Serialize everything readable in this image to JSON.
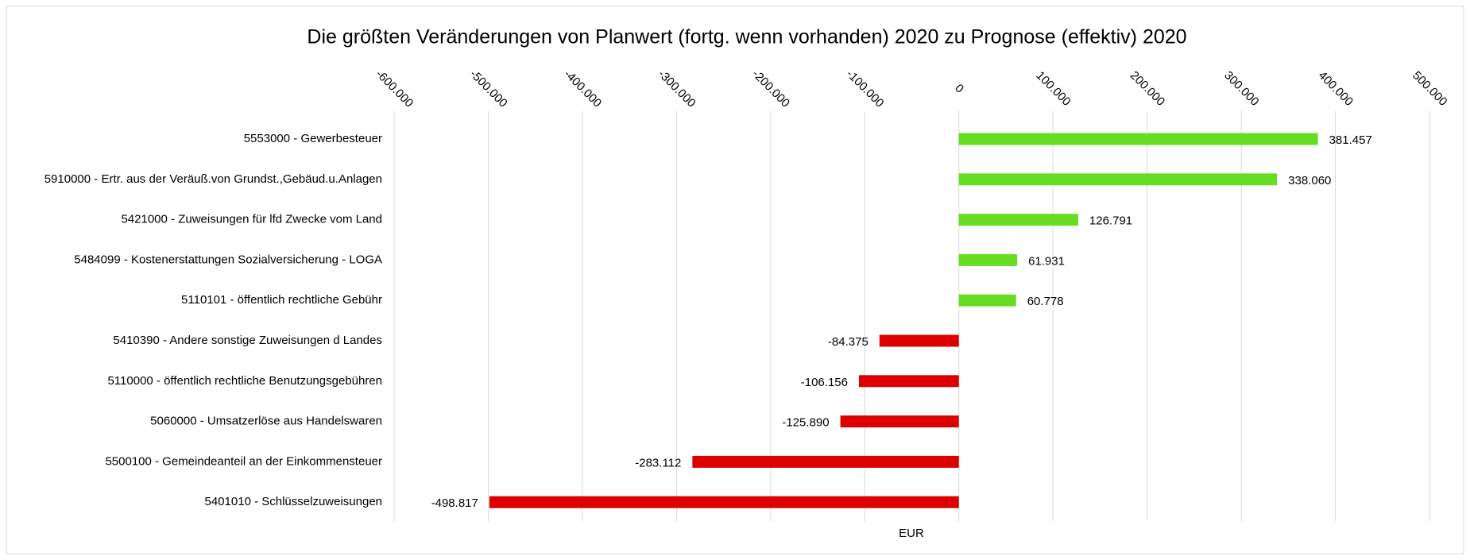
{
  "chart_data": {
    "type": "barh",
    "title": "Die größten Veränderungen von Planwert (fortg. wenn vorhanden) 2020 zu Prognose (effektiv) 2020",
    "x_label": "EUR",
    "categories": [
      "5553000 - Gewerbesteuer",
      "5910000 - Ertr. aus der Veräuß.von Grundst.,Gebäud.u.Anlagen",
      "5421000 - Zuweisungen für lfd Zwecke vom Land",
      "5484099 - Kostenerstattungen Sozialversicherung - LOGA",
      "5110101 - öffentlich rechtliche Gebühr",
      "5410390 - Andere sonstige Zuweisungen d Landes",
      "5110000 - öffentlich rechtliche Benutzungsgebühren",
      "5060000 - Umsatzerlöse aus Handelswaren",
      "5500100 - Gemeindeanteil an der Einkommensteuer",
      "5401010 - Schlüsselzuweisungen"
    ],
    "values": [
      381457,
      338060,
      126791,
      61931,
      60778,
      -84375,
      -106156,
      -125890,
      -283112,
      -498817
    ],
    "value_labels": [
      "381.457",
      "338.060",
      "126.791",
      "61.931",
      "60.778",
      "-84.375",
      "-106.156",
      "-125.890",
      "-283.112",
      "-498.817"
    ],
    "positive_color": "#66dd22",
    "negative_color": "#dd0000",
    "xlim": [
      -600000,
      500000
    ],
    "xticks": [
      {
        "value": -600000,
        "label": "-600.000"
      },
      {
        "value": -500000,
        "label": "-500.000"
      },
      {
        "value": -400000,
        "label": "-400.000"
      },
      {
        "value": -300000,
        "label": "-300.000"
      },
      {
        "value": -200000,
        "label": "-200.000"
      },
      {
        "value": -100000,
        "label": "-100.000"
      },
      0,
      {
        "value": 100000,
        "label": "100.000"
      },
      {
        "value": 200000,
        "label": "200.000"
      },
      {
        "value": 300000,
        "label": "300.000"
      },
      {
        "value": 400000,
        "label": "400.000"
      },
      {
        "value": 500000,
        "label": "500.000"
      }
    ],
    "grid": true
  }
}
